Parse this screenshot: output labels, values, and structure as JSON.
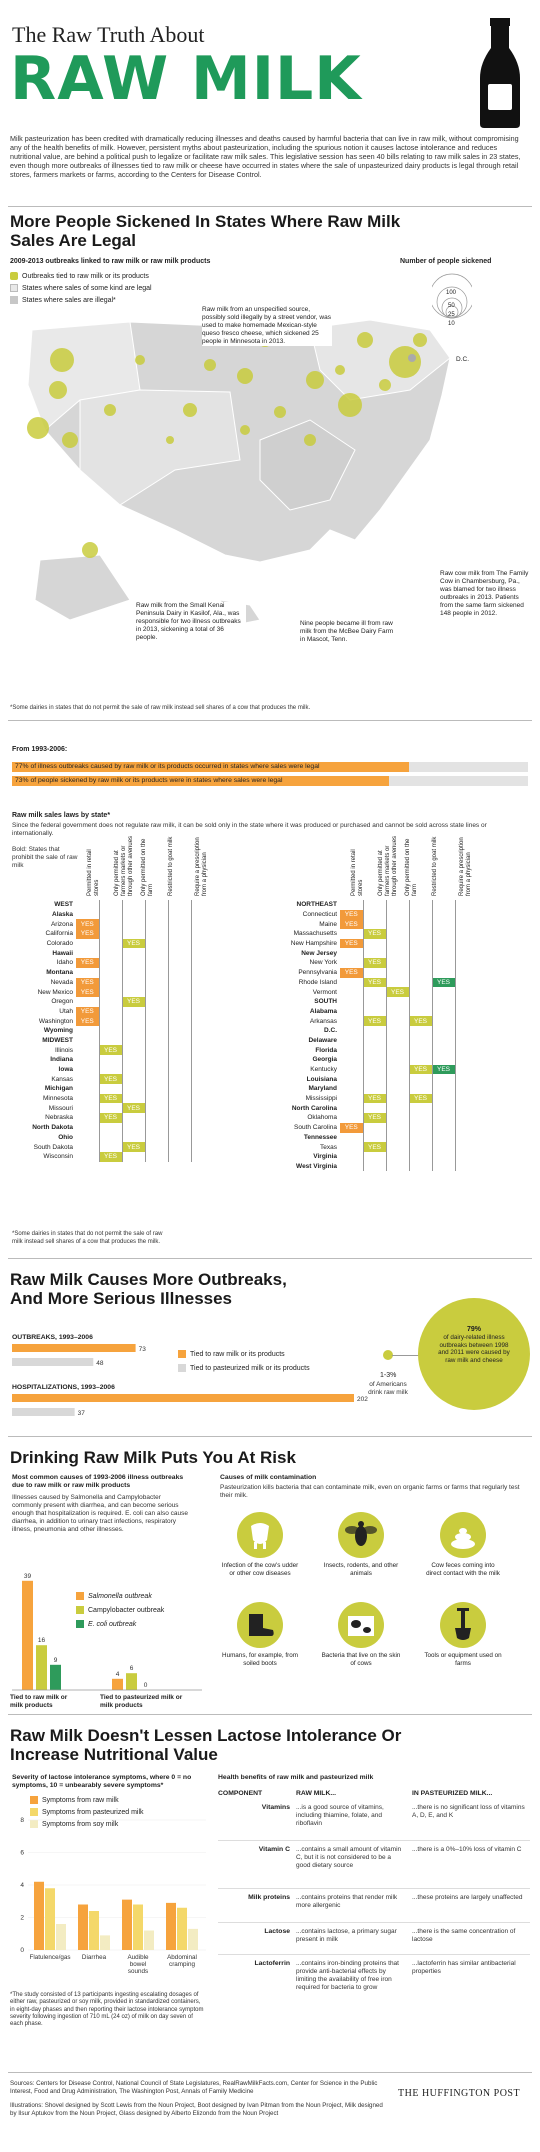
{
  "header": {
    "pre_title": "The Raw Truth About",
    "title": "RAW MILK",
    "intro": "Milk pasteurization has been credited with dramatically reducing illnesses and deaths caused by harmful bacteria that can live in raw milk, without compromising any of the health benefits of milk. However, persistent myths about pasteurization, including the spurious notion it causes lactose intolerance and reduces nutritional value, are behind a political push to legalize or facilitate raw milk sales. This legislative session has seen 40 bills relating to raw milk sales in 23 states, even though more outbreaks of illnesses tied to raw milk or cheese have occurred in states where the sale of unpasteurized dairy products is legal through retail stores, farmers markets or farms, according to the Centers for Disease Control."
  },
  "section1": {
    "title": "More People Sickened In States Where Raw Milk Sales Are Legal",
    "map_heading": "2009-2013 outbreaks linked to raw milk or raw milk products",
    "legend": [
      "Outbreaks tied to raw milk or its products",
      "States where sales of some kind are legal",
      "States where sales are illegal*"
    ],
    "size_legend_title": "Number of people sickened",
    "size_legend": [
      "100",
      "50",
      "25",
      "10"
    ],
    "dc": "D.C.",
    "notes": [
      "Raw milk from an unspecified source, possibly sold illegally by a street vendor, was used to make homemade Mexican-style queso fresco cheese, which sickened 25 people in Minnesota in 2013.",
      "Raw milk from the Small Kenai Peninsula Dairy in Kasilof, Ala., was responsible for two illness outbreaks in 2013, sickening a total of 36 people.",
      "Nine people became ill from raw milk from the McBee Dairy Farm in Mascot, Tenn.",
      "Raw cow milk from The Family Cow in Chambersburg, Pa., was blamed for two illness outbreaks in 2013. Patients from the same farm sickened 148 people in 2012."
    ],
    "footnote": "*Some dairies in states that do not permit the sale of raw milk instead sell shares of a cow that produces the milk."
  },
  "bars1993": {
    "heading": "From 1993-2006:",
    "items": [
      {
        "label": "77% of illness outbreaks caused by raw milk or its products occurred in states where sales were legal",
        "pct": 77
      },
      {
        "label": "73% of people sickened by raw milk or its products were in states where sales were legal",
        "pct": 73
      }
    ]
  },
  "laws": {
    "title": "Raw milk sales laws by state*",
    "desc": "Since the federal government does not regulate raw milk, it can be sold only in the state where it was produced or purchased and cannot be sold across state lines or internationally.",
    "bold_note": "Bold: States that prohibit the sale of raw milk",
    "cols_left": [
      "Permitted in retail stores",
      "Only permitted at farmers markets or through other avenues",
      "Only permitted on the farm",
      "Restricted to goat milk",
      "Require a prescription from a physician"
    ],
    "cols_right": [
      "Permitted in retail stores",
      "Only permitted at farmers markets or through other avenues",
      "Only permitted on the farm",
      "Restricted to goat milk",
      "Require a prescription from a physician"
    ],
    "yes": "YES",
    "left": [
      {
        "n": "WEST",
        "h": 1
      },
      {
        "n": "Alaska",
        "b": 1
      },
      {
        "n": "Arizona",
        "v": [
          1,
          0,
          0,
          0,
          0
        ]
      },
      {
        "n": "California",
        "v": [
          1,
          0,
          0,
          0,
          0
        ]
      },
      {
        "n": "Colorado",
        "v": [
          0,
          0,
          1,
          0,
          0
        ]
      },
      {
        "n": "Hawaii",
        "b": 1
      },
      {
        "n": "Idaho",
        "v": [
          1,
          0,
          0,
          0,
          0
        ]
      },
      {
        "n": "Montana",
        "b": 1
      },
      {
        "n": "Nevada",
        "v": [
          1,
          0,
          0,
          0,
          0
        ]
      },
      {
        "n": "New Mexico",
        "v": [
          1,
          0,
          0,
          0,
          0
        ]
      },
      {
        "n": "Oregon",
        "v": [
          0,
          0,
          1,
          0,
          0
        ]
      },
      {
        "n": "Utah",
        "v": [
          1,
          0,
          0,
          0,
          0
        ]
      },
      {
        "n": "Washington",
        "v": [
          1,
          0,
          0,
          0,
          0
        ]
      },
      {
        "n": "Wyoming",
        "b": 1
      },
      {
        "n": "MIDWEST",
        "h": 1
      },
      {
        "n": "Illinois",
        "v": [
          0,
          1,
          0,
          0,
          0
        ]
      },
      {
        "n": "Indiana",
        "b": 1
      },
      {
        "n": "Iowa",
        "b": 1
      },
      {
        "n": "Kansas",
        "v": [
          0,
          1,
          0,
          0,
          0
        ]
      },
      {
        "n": "Michigan",
        "b": 1
      },
      {
        "n": "Minnesota",
        "v": [
          0,
          1,
          0,
          0,
          0
        ]
      },
      {
        "n": "Missouri",
        "v": [
          0,
          0,
          1,
          0,
          0
        ]
      },
      {
        "n": "Nebraska",
        "v": [
          0,
          1,
          0,
          0,
          0
        ]
      },
      {
        "n": "North Dakota",
        "b": 1
      },
      {
        "n": "Ohio",
        "b": 1
      },
      {
        "n": "South Dakota",
        "v": [
          0,
          0,
          1,
          0,
          0
        ]
      },
      {
        "n": "Wisconsin",
        "v": [
          0,
          1,
          0,
          0,
          0
        ]
      }
    ],
    "right": [
      {
        "n": "NORTHEAST",
        "h": 1
      },
      {
        "n": "Connecticut",
        "v": [
          1,
          0,
          0,
          0,
          0
        ]
      },
      {
        "n": "Maine",
        "v": [
          1,
          0,
          0,
          0,
          0
        ]
      },
      {
        "n": "Massachusetts",
        "v": [
          0,
          1,
          0,
          0,
          0
        ]
      },
      {
        "n": "New Hampshire",
        "v": [
          1,
          0,
          0,
          0,
          0
        ]
      },
      {
        "n": "New Jersey",
        "b": 1
      },
      {
        "n": "New York",
        "v": [
          0,
          1,
          0,
          0,
          0
        ]
      },
      {
        "n": "Pennsylvania",
        "v": [
          1,
          0,
          0,
          0,
          0
        ]
      },
      {
        "n": "Rhode Island",
        "v": [
          0,
          1,
          0,
          0,
          1
        ]
      },
      {
        "n": "Vermont",
        "v": [
          0,
          0,
          1,
          0,
          0
        ]
      },
      {
        "n": "SOUTH",
        "h": 1
      },
      {
        "n": "Alabama",
        "b": 1
      },
      {
        "n": "Arkansas",
        "v": [
          0,
          1,
          0,
          1,
          0
        ]
      },
      {
        "n": "D.C.",
        "b": 1
      },
      {
        "n": "Delaware",
        "b": 1
      },
      {
        "n": "Florida",
        "b": 1
      },
      {
        "n": "Georgia",
        "b": 1
      },
      {
        "n": "Kentucky",
        "v": [
          0,
          0,
          0,
          1,
          1
        ]
      },
      {
        "n": "Louisiana",
        "b": 1
      },
      {
        "n": "Maryland",
        "b": 1
      },
      {
        "n": "Mississippi",
        "v": [
          0,
          1,
          0,
          1,
          0
        ]
      },
      {
        "n": "North Carolina",
        "b": 1
      },
      {
        "n": "Oklahoma",
        "v": [
          0,
          1,
          0,
          0,
          0
        ]
      },
      {
        "n": "South Carolina",
        "v": [
          1,
          0,
          0,
          0,
          0
        ]
      },
      {
        "n": "Tennessee",
        "b": 1
      },
      {
        "n": "Texas",
        "v": [
          0,
          1,
          0,
          0,
          0
        ]
      },
      {
        "n": "Virginia",
        "b": 1
      },
      {
        "n": "West Virginia",
        "b": 1
      }
    ],
    "footnote": "*Some dairies in states that do not permit the sale of raw milk instead sell shares of a cow that produces the milk."
  },
  "section3": {
    "title": "Raw Milk Causes More Outbreaks, And More Serious Illnesses",
    "outbreaks_label": "OUTBREAKS, 1993–2006",
    "hosp_label": "HOSPITALIZATIONS, 1993–2006",
    "legend_raw": "Tied to raw milk or its products",
    "legend_past": "Tied to pasteurized milk or its products",
    "pct_label": "1-3%",
    "pct_desc": "of Americans drink raw milk",
    "circle_pct": "79%",
    "circle_desc": "of dairy-related illness outbreaks between 1998 and 2011 were caused by raw milk and cheese"
  },
  "section4": {
    "title": "Drinking Raw Milk Puts You At Risk",
    "pathogens_title": "Most common causes of 1993-2006 illness outbreaks due to raw milk or raw milk products",
    "pathogens_desc": "Illnesses caused by Salmonella and Campylobacter commonly present with diarrhea, and can become serious enough that hospitalization is required. E. coli can also cause diarrhea, in addition to urinary tract infections, respiratory illness, pneumonia and other illnesses.",
    "legend": [
      "Salmonella outbreak",
      "Campylobacter outbreak",
      "E. coli outbreak"
    ],
    "group_raw": "Tied to raw milk or milk products",
    "group_past": "Tied to pasteurized milk or milk products",
    "causes_title": "Causes of milk contamination",
    "causes_desc": "Pasteurization kills bacteria that can contaminate milk, even on organic farms or farms that regularly test their milk.",
    "causes": [
      "Infection of the cow's udder or other cow diseases",
      "Insects, rodents, and other animals",
      "Cow feces coming into direct contact with the milk",
      "Humans, for example, from soiled boots",
      "Bacteria that live on the skin of cows",
      "Tools or equipment used on farms"
    ]
  },
  "section5": {
    "title": "Raw Milk Doesn't Lessen Lactose Intolerance Or Increase Nutritional Value",
    "sev_title": "Severity of lactose intolerance symptoms, where 0 = no symptoms, 10 = unbearably severe symptoms*",
    "legend": [
      "Symptoms from raw milk",
      "Symptoms from pasteurized milk",
      "Symptoms from soy milk"
    ],
    "footnote": "*The study consisted of 13 participants ingesting escalating dosages of either raw, pasteurized or soy milk, provided in standardized containers, in eight-day phases and then reporting their lactose intolerance symptom severity following ingestion of 710 mL (24 oz) of milk on day seven of each phase.",
    "benefits_title": "Health benefits of raw milk and pasteurized milk",
    "cols": [
      "COMPONENT",
      "RAW MILK...",
      "IN PASTEURIZED MILK..."
    ],
    "rows": [
      {
        "c": "Vitamins",
        "r": "...is a good source of vitamins, including thiamine, folate, and riboflavin",
        "p": "...there is no significant loss of vitamins A, D, E, and K"
      },
      {
        "c": "Vitamin C",
        "r": "...contains a small amount of vitamin C, but it is not considered to be a good dietary source",
        "p": "...there is a 0%–10% loss of vitamin C"
      },
      {
        "c": "Milk proteins",
        "r": "...contains proteins that render milk more allergenic",
        "p": "...these proteins are largely unaffected"
      },
      {
        "c": "Lactose",
        "r": "...contains lactose, a primary sugar present in milk",
        "p": "...there is the same concentration of lactose"
      },
      {
        "c": "Lactoferrin",
        "r": "...contains iron-binding proteins that provide anti-bacterial effects by limiting the availability of free iron required for bacteria to grow",
        "p": "...lactoferrin has similar antibacterial properties"
      }
    ]
  },
  "footer": {
    "sources": "Sources: Centers for Disease Control, National Council of State Legislatures, RealRawMilkFacts.com, Center for Science in the Public Interest, Food and Drug Administration, The Washington Post, Annals of Family Medicine",
    "credits": "Illustrations: Shovel designed by Scott Lewis from the Noun Project, Boot designed by Ivan Pitman from the Noun Project, Milk designed by Ilsur Aptukov from the Noun Project, Glass designed by Alberto Elizondo from the Noun Project",
    "brand": "THE HUFFINGTON POST"
  },
  "colors": {
    "green": "#2e9b5b",
    "title_green": "#1f9a5a",
    "orange": "#f29a3a",
    "yellow_green": "#c9cc3e",
    "pale": "#f3ecc2",
    "gray": "#d8d8d8"
  },
  "chart_data": [
    {
      "type": "bar",
      "title": "OUTBREAKS, 1993–2006",
      "categories": [
        "Tied to raw milk or its products",
        "Tied to pasteurized milk or its products"
      ],
      "values": [
        73,
        48
      ]
    },
    {
      "type": "bar",
      "title": "HOSPITALIZATIONS, 1993–2006",
      "categories": [
        "Tied to raw milk or its products",
        "Tied to pasteurized milk or its products"
      ],
      "values": [
        202,
        37
      ]
    },
    {
      "type": "bar",
      "title": "Most common causes of 1993-2006 illness outbreaks due to raw milk or raw milk products",
      "categories": [
        "Tied to raw milk or milk products",
        "Tied to pasteurized milk or milk products"
      ],
      "series": [
        {
          "name": "Salmonella outbreak",
          "values": [
            39,
            4
          ]
        },
        {
          "name": "Campylobacter outbreak",
          "values": [
            16,
            6
          ]
        },
        {
          "name": "E. coli outbreak",
          "values": [
            9,
            0
          ]
        }
      ]
    },
    {
      "type": "bar",
      "title": "Severity of lactose intolerance symptoms",
      "categories": [
        "Flatulence/gas",
        "Diarrhea",
        "Audible bowel sounds",
        "Abdominal cramping"
      ],
      "series": [
        {
          "name": "Symptoms from raw milk",
          "values": [
            4.2,
            2.8,
            3.1,
            2.9
          ]
        },
        {
          "name": "Symptoms from pasteurized milk",
          "values": [
            3.8,
            2.4,
            2.8,
            2.6
          ]
        },
        {
          "name": "Symptoms from soy milk",
          "values": [
            1.6,
            0.9,
            1.2,
            1.3
          ]
        }
      ],
      "yticks": [
        "0",
        "2",
        "4",
        "6",
        "8"
      ],
      "ylim": [
        0,
        8
      ]
    },
    {
      "type": "bar",
      "title": "From 1993-2006",
      "categories": [
        "illness outbreaks in states where sales were legal",
        "people sickened in states where sales were legal"
      ],
      "values": [
        77,
        73
      ],
      "unit": "%"
    }
  ]
}
